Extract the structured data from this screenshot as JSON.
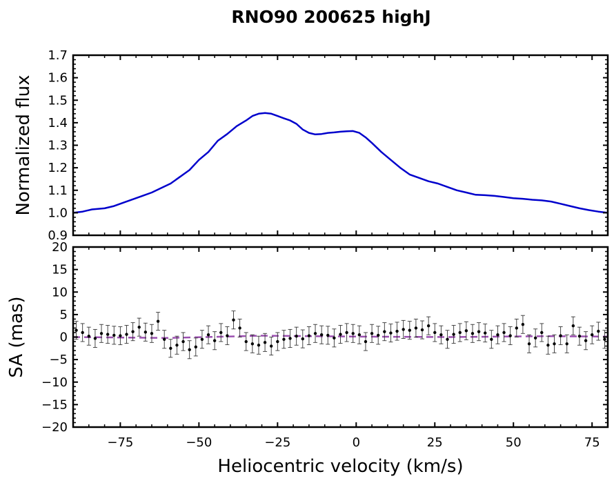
{
  "chart_data": [
    {
      "type": "line",
      "panel": "top",
      "title": "RNO90 200625 highJ",
      "xlabel": "",
      "ylabel": "Normalized flux",
      "xlim": [
        -90,
        80
      ],
      "ylim": [
        0.9,
        1.7
      ],
      "yticks": [
        "0.9",
        "1.0",
        "1.1",
        "1.2",
        "1.3",
        "1.4",
        "1.5",
        "1.6",
        "1.7"
      ],
      "color": "#0000cc",
      "grid": false,
      "series": [
        {
          "x": [
            -90,
            -87,
            -84,
            -80,
            -77,
            -74,
            -71,
            -68,
            -65,
            -62,
            -59,
            -56,
            -53,
            -50,
            -47,
            -44,
            -41,
            -38,
            -35,
            -33,
            -31,
            -29,
            -27,
            -25,
            -23,
            -21,
            -19,
            -17,
            -15,
            -13,
            -11,
            -9,
            -7,
            -5,
            -3,
            -1,
            1,
            3,
            5,
            8,
            11,
            14,
            17,
            20,
            23,
            26,
            29,
            32,
            35,
            38,
            41,
            44,
            47,
            50,
            53,
            56,
            59,
            62,
            65,
            68,
            71,
            74,
            77,
            80
          ],
          "y": [
            1.0,
            1.005,
            1.015,
            1.02,
            1.03,
            1.045,
            1.06,
            1.075,
            1.09,
            1.11,
            1.13,
            1.16,
            1.19,
            1.235,
            1.27,
            1.32,
            1.35,
            1.385,
            1.41,
            1.43,
            1.44,
            1.443,
            1.44,
            1.43,
            1.42,
            1.41,
            1.395,
            1.37,
            1.355,
            1.348,
            1.35,
            1.355,
            1.357,
            1.36,
            1.362,
            1.363,
            1.355,
            1.335,
            1.31,
            1.27,
            1.235,
            1.2,
            1.17,
            1.155,
            1.14,
            1.13,
            1.115,
            1.1,
            1.09,
            1.08,
            1.078,
            1.075,
            1.07,
            1.065,
            1.062,
            1.058,
            1.055,
            1.05,
            1.04,
            1.03,
            1.02,
            1.012,
            1.005,
            1.0
          ]
        }
      ]
    },
    {
      "type": "scatter",
      "panel": "bottom",
      "xlabel": "Heliocentric velocity (km/s)",
      "ylabel": "SA (mas)",
      "xlim": [
        -90,
        80
      ],
      "ylim": [
        -20,
        20
      ],
      "xticks": [
        "−75",
        "−50",
        "−25",
        "0",
        "25",
        "50",
        "75"
      ],
      "yticks": [
        "−20",
        "−15",
        "−10",
        "−5",
        "0",
        "5",
        "10",
        "15",
        "20"
      ],
      "point_color": "#000000",
      "errorbar": 2.0,
      "grid": false,
      "points": {
        "x": [
          -89,
          -87,
          -85,
          -83,
          -81,
          -79,
          -77,
          -75,
          -73,
          -71,
          -69,
          -67,
          -65,
          -63,
          -61,
          -59,
          -57,
          -55,
          -53,
          -51,
          -49,
          -47,
          -45,
          -43,
          -41,
          -39,
          -37,
          -35,
          -33,
          -31,
          -29,
          -27,
          -25,
          -23,
          -21,
          -19,
          -17,
          -15,
          -13,
          -11,
          -9,
          -7,
          -5,
          -3,
          -1,
          1,
          3,
          5,
          7,
          9,
          11,
          13,
          15,
          17,
          19,
          21,
          23,
          25,
          27,
          29,
          31,
          33,
          35,
          37,
          39,
          41,
          43,
          45,
          47,
          49,
          51,
          53,
          55,
          57,
          59,
          61,
          63,
          65,
          67,
          69,
          71,
          73,
          75,
          77,
          79
        ],
        "y": [
          1.5,
          1.0,
          0.2,
          -0.3,
          0.8,
          0.6,
          0.4,
          0.3,
          0.6,
          1.2,
          2.2,
          1.1,
          0.8,
          3.5,
          -0.5,
          -2.5,
          -1.8,
          -1.0,
          -2.8,
          -2.2,
          -0.5,
          0.5,
          -0.8,
          1.0,
          0.3,
          3.8,
          2.0,
          -1.0,
          -1.5,
          -1.8,
          -1.2,
          -2.0,
          -1.0,
          -0.5,
          -0.3,
          0.2,
          -0.4,
          0.3,
          0.8,
          0.5,
          0.4,
          -0.2,
          0.6,
          1.0,
          0.8,
          0.5,
          -1.0,
          0.8,
          0.4,
          1.2,
          0.9,
          1.3,
          1.7,
          1.5,
          2.0,
          1.6,
          2.5,
          1.0,
          0.5,
          -0.5,
          0.6,
          1.0,
          1.4,
          0.8,
          1.2,
          0.9,
          -0.5,
          0.5,
          1.0,
          0.3,
          2.0,
          2.8,
          -1.5,
          -0.2,
          1.0,
          -1.8,
          -1.5,
          0.3,
          -1.5,
          2.5,
          0.2,
          -0.8,
          0.5,
          1.3,
          -0.5
        ]
      },
      "reference_line": {
        "style": "dashed",
        "color": "#9b4fb0",
        "x": [
          -90,
          -60,
          -30,
          0,
          30,
          60,
          80
        ],
        "y": [
          0.0,
          -0.2,
          0.3,
          0.1,
          0.0,
          0.2,
          0.1
        ]
      }
    }
  ]
}
